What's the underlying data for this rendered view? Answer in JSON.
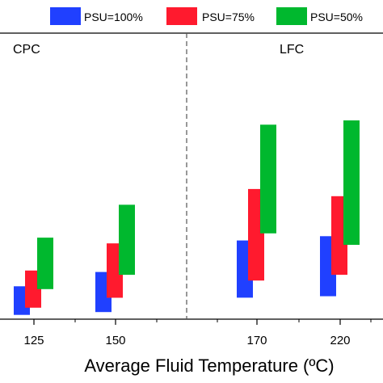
{
  "chart_data": {
    "type": "bar",
    "subtype": "floating-range",
    "xlabel": "Average Fluid Temperature (ºC)",
    "categories": [
      "125",
      "150",
      "170",
      "220"
    ],
    "panels": [
      {
        "label": "CPC",
        "categories": [
          "125",
          "150"
        ]
      },
      {
        "label": "LFC",
        "categories": [
          "170",
          "220"
        ]
      }
    ],
    "legend": {
      "placement": "top",
      "entries": [
        "PSU=100%",
        "PSU=75%",
        "PSU=50%"
      ]
    },
    "ylim": [
      0,
      100
    ],
    "grid": false,
    "series": [
      {
        "name": "PSU=100%",
        "color": "#2040ff",
        "ranges": [
          [
            1.5,
            11.5
          ],
          [
            2.5,
            16.5
          ],
          [
            7.5,
            27.5
          ],
          [
            8.0,
            29.0
          ]
        ]
      },
      {
        "name": "PSU=75%",
        "color": "#ff1a2e",
        "ranges": [
          [
            4.0,
            17.0
          ],
          [
            7.5,
            26.5
          ],
          [
            13.5,
            45.5
          ],
          [
            15.5,
            43.0
          ]
        ]
      },
      {
        "name": "PSU=50%",
        "color": "#00b82e",
        "ranges": [
          [
            10.5,
            28.5
          ],
          [
            15.5,
            40.0
          ],
          [
            30.0,
            68.0
          ],
          [
            26.0,
            69.5
          ]
        ]
      }
    ]
  }
}
